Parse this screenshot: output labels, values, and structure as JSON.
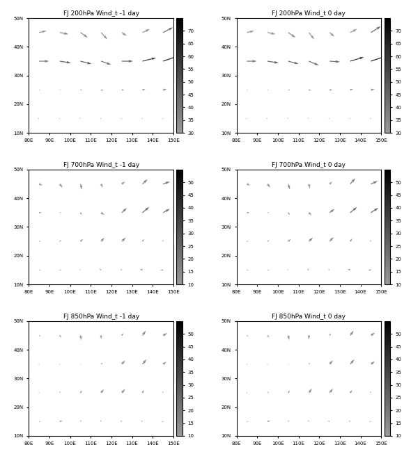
{
  "chart_data": [
    {
      "type": "quiver",
      "title": "FJ 200hPa Wind_t -1 day",
      "x": [
        85,
        95,
        105,
        115,
        125,
        135,
        145
      ],
      "y": [
        15,
        25,
        35,
        45
      ],
      "u": [
        [
          -5,
          -5,
          -5,
          -5,
          -5,
          -5,
          -5
        ],
        [
          5,
          5,
          8,
          10,
          10,
          12,
          15
        ],
        [
          40,
          45,
          45,
          40,
          45,
          55,
          60
        ],
        [
          30,
          35,
          30,
          25,
          20,
          30,
          40
        ]
      ],
      "v": [
        [
          0,
          0,
          0,
          0,
          0,
          0,
          0
        ],
        [
          0,
          0,
          0,
          -2,
          0,
          2,
          2
        ],
        [
          0,
          -5,
          -8,
          -10,
          0,
          10,
          15
        ],
        [
          5,
          -5,
          -15,
          -20,
          -10,
          10,
          15
        ]
      ],
      "xlim": [
        80,
        150
      ],
      "ylim": [
        10,
        50
      ],
      "xticks": [
        {
          "value": 80,
          "label": "80E"
        },
        {
          "value": 90,
          "label": "90E"
        },
        {
          "value": 100,
          "label": "100E"
        },
        {
          "value": 110,
          "label": "110E"
        },
        {
          "value": 120,
          "label": "120E"
        },
        {
          "value": 130,
          "label": "130E"
        },
        {
          "value": 140,
          "label": "140E"
        },
        {
          "value": 150,
          "label": "150E"
        }
      ],
      "yticks": [
        {
          "value": 10,
          "label": "10N"
        },
        {
          "value": 20,
          "label": "20N"
        },
        {
          "value": 30,
          "label": "30N"
        },
        {
          "value": 40,
          "label": "40N"
        },
        {
          "value": 50,
          "label": "50N"
        }
      ],
      "colorbar_range": [
        30,
        75
      ],
      "colorbar_ticks": [
        30,
        35,
        40,
        45,
        50,
        55,
        60,
        65,
        70
      ]
    },
    {
      "type": "quiver",
      "title": "FJ 200hPa Wind_t 0 day",
      "x": [
        85,
        95,
        105,
        115,
        125,
        135,
        145
      ],
      "y": [
        15,
        25,
        35,
        45
      ],
      "u": [
        [
          -5,
          -5,
          -5,
          -5,
          -5,
          -5,
          -5
        ],
        [
          5,
          5,
          8,
          10,
          12,
          12,
          15
        ],
        [
          40,
          45,
          42,
          40,
          42,
          55,
          62
        ],
        [
          30,
          32,
          30,
          22,
          20,
          28,
          40
        ]
      ],
      "v": [
        [
          0,
          0,
          0,
          0,
          0,
          0,
          0
        ],
        [
          0,
          0,
          0,
          -2,
          0,
          2,
          2
        ],
        [
          0,
          -5,
          -8,
          -12,
          -2,
          12,
          15
        ],
        [
          5,
          -5,
          -15,
          -20,
          -12,
          10,
          18
        ]
      ],
      "xlim": [
        80,
        150
      ],
      "ylim": [
        10,
        50
      ],
      "xticks": [
        {
          "value": 80,
          "label": "80E"
        },
        {
          "value": 90,
          "label": "90E"
        },
        {
          "value": 100,
          "label": "100E"
        },
        {
          "value": 110,
          "label": "110E"
        },
        {
          "value": 120,
          "label": "120E"
        },
        {
          "value": 130,
          "label": "130E"
        },
        {
          "value": 140,
          "label": "140E"
        },
        {
          "value": 150,
          "label": "150E"
        }
      ],
      "yticks": [
        {
          "value": 10,
          "label": "10N"
        },
        {
          "value": 20,
          "label": "20N"
        },
        {
          "value": 30,
          "label": "30N"
        },
        {
          "value": 40,
          "label": "40N"
        },
        {
          "value": 50,
          "label": "50N"
        }
      ],
      "colorbar_range": [
        30,
        75
      ],
      "colorbar_ticks": [
        30,
        35,
        40,
        45,
        50,
        55,
        60,
        65,
        70
      ]
    },
    {
      "type": "quiver",
      "title": "FJ 700hPa Wind_t -1 day",
      "x": [
        85,
        95,
        105,
        115,
        125,
        135,
        145
      ],
      "y": [
        15,
        25,
        35,
        45
      ],
      "u": [
        [
          5,
          5,
          -3,
          -5,
          -5,
          -8,
          -8
        ],
        [
          5,
          5,
          8,
          10,
          12,
          5,
          -3
        ],
        [
          8,
          5,
          5,
          10,
          15,
          20,
          20
        ],
        [
          10,
          8,
          5,
          5,
          10,
          15,
          20
        ]
      ],
      "v": [
        [
          0,
          0,
          2,
          3,
          2,
          2,
          0
        ],
        [
          0,
          3,
          5,
          8,
          8,
          5,
          3
        ],
        [
          0,
          0,
          -5,
          -5,
          10,
          12,
          8
        ],
        [
          -3,
          -8,
          -12,
          -8,
          5,
          10,
          5
        ]
      ],
      "xlim": [
        80,
        150
      ],
      "ylim": [
        10,
        50
      ],
      "xticks": [
        {
          "value": 80,
          "label": "80E"
        },
        {
          "value": 90,
          "label": "90E"
        },
        {
          "value": 100,
          "label": "100E"
        },
        {
          "value": 110,
          "label": "110E"
        },
        {
          "value": 120,
          "label": "120E"
        },
        {
          "value": 130,
          "label": "130E"
        },
        {
          "value": 140,
          "label": "140E"
        },
        {
          "value": 150,
          "label": "150E"
        }
      ],
      "yticks": [
        {
          "value": 10,
          "label": "10N"
        },
        {
          "value": 20,
          "label": "20N"
        },
        {
          "value": 30,
          "label": "30N"
        },
        {
          "value": 40,
          "label": "40N"
        },
        {
          "value": 50,
          "label": "50N"
        }
      ],
      "colorbar_range": [
        10,
        55
      ],
      "colorbar_ticks": [
        10,
        15,
        20,
        25,
        30,
        35,
        40,
        45,
        50
      ]
    },
    {
      "type": "quiver",
      "title": "FJ 700hPa Wind_t 0 day",
      "x": [
        85,
        95,
        105,
        115,
        125,
        135,
        145
      ],
      "y": [
        15,
        25,
        35,
        45
      ],
      "u": [
        [
          5,
          5,
          -3,
          -5,
          -5,
          -8,
          -8
        ],
        [
          5,
          5,
          8,
          12,
          12,
          6,
          -3
        ],
        [
          8,
          5,
          5,
          8,
          15,
          20,
          22
        ],
        [
          10,
          8,
          5,
          3,
          8,
          15,
          20
        ]
      ],
      "v": [
        [
          0,
          0,
          2,
          3,
          2,
          2,
          0
        ],
        [
          0,
          3,
          5,
          8,
          9,
          6,
          3
        ],
        [
          0,
          0,
          -5,
          -6,
          8,
          12,
          10
        ],
        [
          -3,
          -8,
          -12,
          -10,
          5,
          12,
          6
        ]
      ],
      "xlim": [
        80,
        150
      ],
      "ylim": [
        10,
        50
      ],
      "xticks": [
        {
          "value": 80,
          "label": "80E"
        },
        {
          "value": 90,
          "label": "90E"
        },
        {
          "value": 100,
          "label": "100E"
        },
        {
          "value": 110,
          "label": "110E"
        },
        {
          "value": 120,
          "label": "120E"
        },
        {
          "value": 130,
          "label": "130E"
        },
        {
          "value": 140,
          "label": "140E"
        },
        {
          "value": 150,
          "label": "150E"
        }
      ],
      "yticks": [
        {
          "value": 10,
          "label": "10N"
        },
        {
          "value": 20,
          "label": "20N"
        },
        {
          "value": 30,
          "label": "30N"
        },
        {
          "value": 40,
          "label": "40N"
        },
        {
          "value": 50,
          "label": "50N"
        }
      ],
      "colorbar_range": [
        10,
        55
      ],
      "colorbar_ticks": [
        10,
        15,
        20,
        25,
        30,
        35,
        40,
        45,
        50
      ]
    },
    {
      "type": "quiver",
      "title": "FJ 850hPa Wind_t -1 day",
      "x": [
        85,
        95,
        105,
        115,
        125,
        135,
        145
      ],
      "y": [
        15,
        25,
        35,
        45
      ],
      "u": [
        [
          5,
          8,
          3,
          -3,
          -5,
          -5,
          -5
        ],
        [
          0,
          3,
          5,
          8,
          10,
          5,
          -3
        ],
        [
          0,
          2,
          3,
          5,
          10,
          12,
          10
        ],
        [
          5,
          5,
          3,
          0,
          5,
          10,
          12
        ]
      ],
      "v": [
        [
          0,
          2,
          3,
          3,
          2,
          2,
          0
        ],
        [
          0,
          3,
          5,
          8,
          8,
          6,
          3
        ],
        [
          0,
          0,
          0,
          3,
          8,
          10,
          5
        ],
        [
          -2,
          -5,
          -10,
          -8,
          5,
          10,
          5
        ]
      ],
      "xlim": [
        80,
        150
      ],
      "ylim": [
        10,
        50
      ],
      "xticks": [
        {
          "value": 80,
          "label": "80E"
        },
        {
          "value": 90,
          "label": "90E"
        },
        {
          "value": 100,
          "label": "100E"
        },
        {
          "value": 110,
          "label": "110E"
        },
        {
          "value": 120,
          "label": "120E"
        },
        {
          "value": 130,
          "label": "130E"
        },
        {
          "value": 140,
          "label": "140E"
        },
        {
          "value": 150,
          "label": "150E"
        }
      ],
      "yticks": [
        {
          "value": 10,
          "label": "10N"
        },
        {
          "value": 20,
          "label": "20N"
        },
        {
          "value": 30,
          "label": "30N"
        },
        {
          "value": 40,
          "label": "40N"
        },
        {
          "value": 50,
          "label": "50N"
        }
      ],
      "colorbar_range": [
        10,
        55
      ],
      "colorbar_ticks": [
        10,
        15,
        20,
        25,
        30,
        35,
        40,
        45,
        50
      ]
    },
    {
      "type": "quiver",
      "title": "FJ 850hPa Wind_t 0 day",
      "x": [
        85,
        95,
        105,
        115,
        125,
        135,
        145
      ],
      "y": [
        15,
        25,
        35,
        45
      ],
      "u": [
        [
          5,
          8,
          3,
          -3,
          -5,
          -5,
          -5
        ],
        [
          0,
          3,
          5,
          9,
          10,
          6,
          -3
        ],
        [
          0,
          2,
          3,
          4,
          10,
          12,
          12
        ],
        [
          5,
          5,
          3,
          0,
          4,
          10,
          12
        ]
      ],
      "v": [
        [
          0,
          2,
          3,
          3,
          2,
          2,
          0
        ],
        [
          0,
          3,
          5,
          9,
          9,
          6,
          3
        ],
        [
          0,
          0,
          0,
          3,
          8,
          10,
          6
        ],
        [
          -2,
          -5,
          -10,
          -9,
          5,
          10,
          6
        ]
      ],
      "xlim": [
        80,
        150
      ],
      "ylim": [
        10,
        50
      ],
      "xticks": [
        {
          "value": 80,
          "label": "80E"
        },
        {
          "value": 90,
          "label": "90E"
        },
        {
          "value": 100,
          "label": "100E"
        },
        {
          "value": 110,
          "label": "110E"
        },
        {
          "value": 120,
          "label": "120E"
        },
        {
          "value": 130,
          "label": "130E"
        },
        {
          "value": 140,
          "label": "140E"
        },
        {
          "value": 150,
          "label": "150E"
        }
      ],
      "yticks": [
        {
          "value": 10,
          "label": "10N"
        },
        {
          "value": 20,
          "label": "20N"
        },
        {
          "value": 30,
          "label": "30N"
        },
        {
          "value": 40,
          "label": "40N"
        },
        {
          "value": 50,
          "label": "50N"
        }
      ],
      "colorbar_range": [
        10,
        55
      ],
      "colorbar_ticks": [
        10,
        15,
        20,
        25,
        30,
        35,
        40,
        45,
        50
      ]
    }
  ]
}
